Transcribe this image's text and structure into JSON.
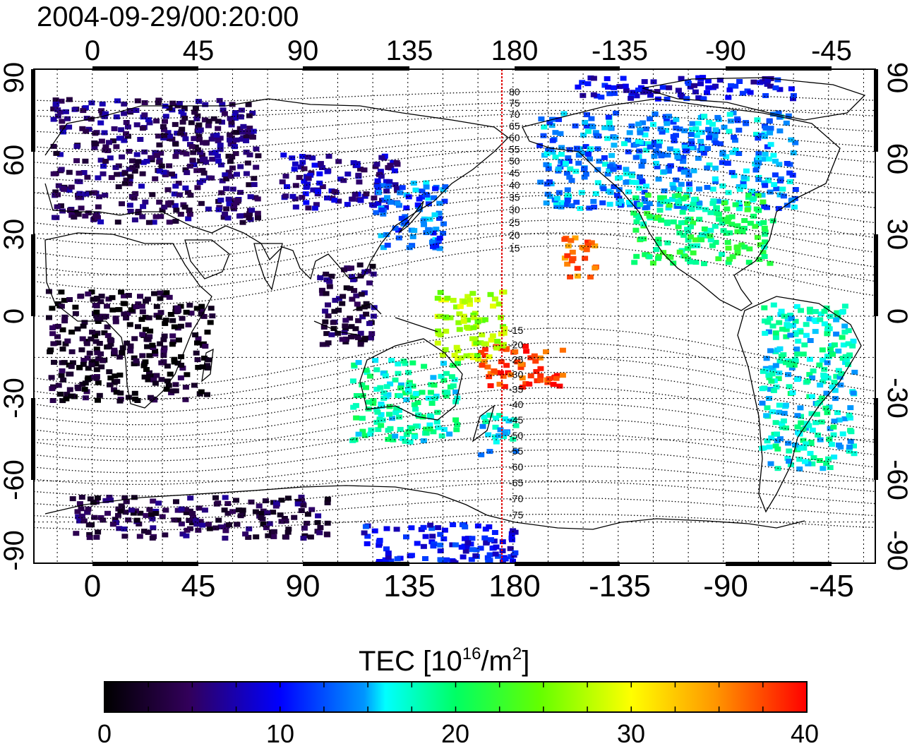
{
  "title": "2004-09-29/00:20:00",
  "top_lon_labels": [
    "0",
    "45",
    "90",
    "135",
    "180",
    "-135",
    "-90",
    "-45"
  ],
  "bottom_lon_labels": [
    "0",
    "45",
    "90",
    "135",
    "180",
    "-135",
    "-90",
    "-45"
  ],
  "left_lat_labels": [
    "90",
    "60",
    "30",
    "0",
    "-30",
    "-60",
    "-90"
  ],
  "right_lat_labels": [
    "90",
    "60",
    "30",
    "0",
    "-30",
    "-60",
    "-90"
  ],
  "mag_lat_labels": [
    "80",
    "75",
    "70",
    "65",
    "60",
    "55",
    "50",
    "45",
    "40",
    "35",
    "30",
    "25",
    "20",
    "15",
    "-15",
    "-20",
    "-25",
    "-30",
    "-35",
    "-40",
    "-45",
    "-50",
    "-55",
    "-60",
    "-65",
    "-70",
    "-75"
  ],
  "colorbar": {
    "label_main": "TEC  [10",
    "label_sup1": "16",
    "label_mid": "/m",
    "label_sup2": "2",
    "label_end": "]",
    "ticks": [
      "0",
      "10",
      "20",
      "30",
      "40"
    ],
    "min": 0,
    "max": 40
  },
  "map": {
    "lon_range": [
      -25,
      335
    ],
    "lat_range": [
      -90,
      90
    ],
    "midnight_meridian_color": "#e00000",
    "projection": "equirectangular",
    "grid": "dotted 15deg"
  },
  "chart_data": {
    "type": "heatmap",
    "title": "2004-09-29/00:20:00",
    "xlabel": "",
    "ylabel": "",
    "colorbar_label": "TEC [10^16/m^2]",
    "value_range": [
      0,
      40
    ],
    "regions": [
      {
        "lon": [
          -18,
          70
        ],
        "lat": [
          35,
          80
        ],
        "tec": 5
      },
      {
        "lon": [
          80,
          130
        ],
        "lat": [
          40,
          60
        ],
        "tec": 7
      },
      {
        "lon": [
          120,
          150
        ],
        "lat": [
          25,
          50
        ],
        "tec": 13
      },
      {
        "lon": [
          95,
          120
        ],
        "lat": [
          -10,
          20
        ],
        "tec": 4
      },
      {
        "lon": [
          190,
          300
        ],
        "lat": [
          40,
          75
        ],
        "tec": 14
      },
      {
        "lon": [
          230,
          290
        ],
        "lat": [
          20,
          45
        ],
        "tec": 20
      },
      {
        "lon": [
          165,
          200
        ],
        "lat": [
          -25,
          -10
        ],
        "tec": 38
      },
      {
        "lon": [
          200,
          215
        ],
        "lat": [
          15,
          30
        ],
        "tec": 36
      },
      {
        "lon": [
          145,
          175
        ],
        "lat": [
          -15,
          10
        ],
        "tec": 27
      },
      {
        "lon": [
          110,
          155
        ],
        "lat": [
          -45,
          -15
        ],
        "tec": 18
      },
      {
        "lon": [
          165,
          180
        ],
        "lat": [
          -50,
          -35
        ],
        "tec": 16
      },
      {
        "lon": [
          285,
          325
        ],
        "lat": [
          -55,
          5
        ],
        "tec": 17
      },
      {
        "lon": [
          -20,
          50
        ],
        "lat": [
          -30,
          10
        ],
        "tec": 2
      },
      {
        "lon": [
          -10,
          100
        ],
        "lat": [
          -80,
          -65
        ],
        "tec": 4
      },
      {
        "lon": [
          115,
          180
        ],
        "lat": [
          -90,
          -75
        ],
        "tec": 10
      },
      {
        "lon": [
          205,
          300
        ],
        "lat": [
          80,
          88
        ],
        "tec": 9
      }
    ]
  }
}
